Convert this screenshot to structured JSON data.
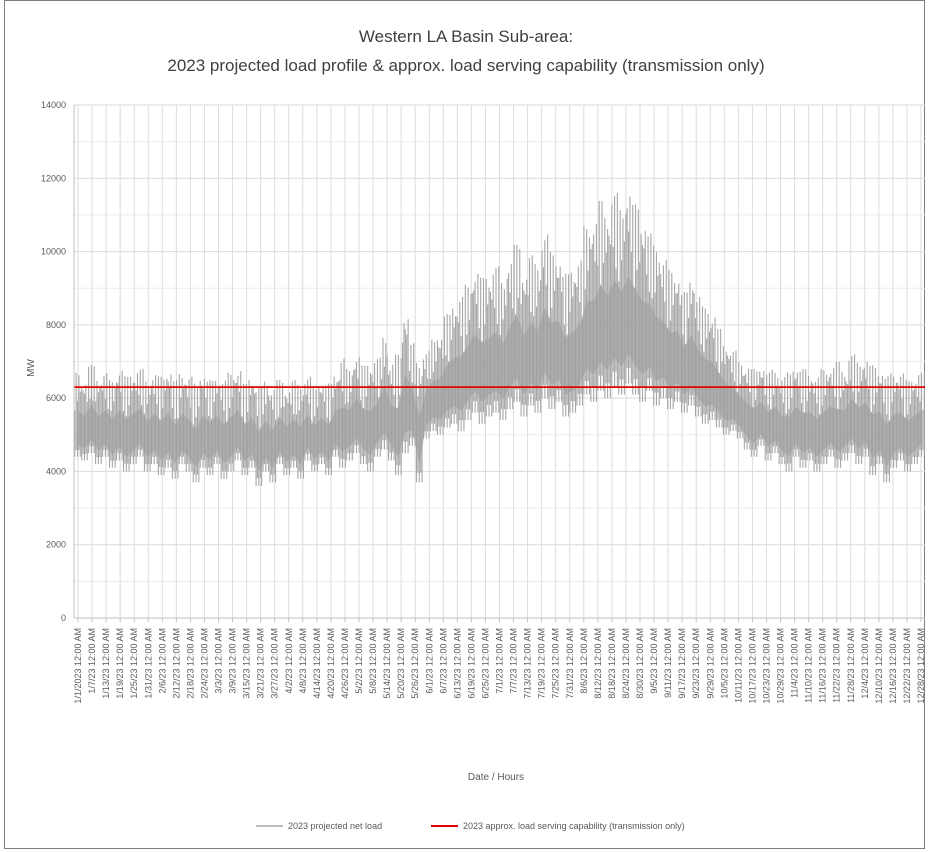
{
  "chart_data": {
    "type": "line",
    "title": "Western LA Basin Sub-area:",
    "subtitle": "2023 projected load profile & approx. load serving capability (transmission only)",
    "xlabel": "Date / Hours",
    "ylabel": "MW",
    "ylim": [
      0,
      14000
    ],
    "yticks": [
      0,
      2000,
      4000,
      6000,
      8000,
      10000,
      12000,
      14000
    ],
    "grid": true,
    "legend_position": "bottom",
    "x_tick_labels": [
      "1/1/2023 12:00 AM",
      "1/7/23 12:00 AM",
      "1/13/23 12:00 AM",
      "1/19/23 12:00 AM",
      "1/25/23 12:00 AM",
      "1/31/23 12:00 AM",
      "2/6/23 12:00 AM",
      "2/12/23 12:00 AM",
      "2/18/23 12:00 AM",
      "2/24/23 12:00 AM",
      "3/3/23 12:00 AM",
      "3/9/23 12:00 AM",
      "3/15/23 12:00 AM",
      "3/21/23 12:00 AM",
      "3/27/23 12:00 AM",
      "4/2/23 12:00 AM",
      "4/8/23 12:00 AM",
      "4/14/23 12:00 AM",
      "4/20/23 12:00 AM",
      "4/26/23 12:00 AM",
      "5/2/23 12:00 AM",
      "5/8/23 12:00 AM",
      "5/14/23 12:00 AM",
      "5/20/23 12:00 AM",
      "5/26/23 12:00 AM",
      "6/1/23 12:00 AM",
      "6/7/23 12:00 AM",
      "6/13/23 12:00 AM",
      "6/19/23 12:00 AM",
      "6/25/23 12:00 AM",
      "7/1/23 12:00 AM",
      "7/7/23 12:00 AM",
      "7/13/23 12:00 AM",
      "7/19/23 12:00 AM",
      "7/25/23 12:00 AM",
      "7/31/23 12:00 AM",
      "8/6/23 12:00 AM",
      "8/12/23 12:00 AM",
      "8/18/23 12:00 AM",
      "8/24/23 12:00 AM",
      "8/30/23 12:00 AM",
      "9/5/23 12:00 AM",
      "9/11/23 12:00 AM",
      "9/17/23 12:00 AM",
      "9/23/23 12:00 AM",
      "9/29/23 12:00 AM",
      "10/5/23 12:00 AM",
      "10/11/23 12:00 AM",
      "10/17/23 12:00 AM",
      "10/23/23 12:00 AM",
      "10/29/23 12:00 AM",
      "11/4/23 12:00 AM",
      "11/10/23 12:00 AM",
      "11/16/23 12:00 AM",
      "11/22/23 12:00 AM",
      "11/28/23 12:00 AM",
      "12/4/23 12:00 AM",
      "12/10/23 12:00 AM",
      "12/16/23 12:00 AM",
      "12/22/23 12:00 AM",
      "12/28/23 12:00 AM"
    ],
    "series": [
      {
        "name": "2023 projected net load",
        "color": "#a6a6a6",
        "x_start": "2023-01-01",
        "x_step_days": 3,
        "values": [
          [
            4400,
            6700
          ],
          [
            4300,
            6500
          ],
          [
            4500,
            6900
          ],
          [
            4200,
            6600
          ],
          [
            4400,
            6700
          ],
          [
            4100,
            6500
          ],
          [
            4300,
            6800
          ],
          [
            4000,
            6600
          ],
          [
            4200,
            6700
          ],
          [
            4400,
            6800
          ],
          [
            4000,
            6500
          ],
          [
            4200,
            6700
          ],
          [
            3900,
            6600
          ],
          [
            4100,
            6800
          ],
          [
            3800,
            6500
          ],
          [
            4200,
            6700
          ],
          [
            4000,
            6600
          ],
          [
            3700,
            6400
          ],
          [
            4100,
            6700
          ],
          [
            3900,
            6500
          ],
          [
            4200,
            6600
          ],
          [
            3800,
            6500
          ],
          [
            4000,
            6700
          ],
          [
            4300,
            6800
          ],
          [
            3900,
            6400
          ],
          [
            4100,
            6600
          ],
          [
            3600,
            6300
          ],
          [
            4000,
            6500
          ],
          [
            3700,
            6300
          ],
          [
            4200,
            6500
          ],
          [
            3900,
            6300
          ],
          [
            4100,
            6500
          ],
          [
            3800,
            6400
          ],
          [
            4300,
            6600
          ],
          [
            4000,
            6300
          ],
          [
            4200,
            6500
          ],
          [
            3900,
            6400
          ],
          [
            4400,
            6700
          ],
          [
            4100,
            7100
          ],
          [
            4300,
            6800
          ],
          [
            4500,
            7200
          ],
          [
            4200,
            6900
          ],
          [
            4000,
            7000
          ],
          [
            4400,
            7100
          ],
          [
            4600,
            7700
          ],
          [
            4300,
            7000
          ],
          [
            3900,
            7200
          ],
          [
            4500,
            8400
          ],
          [
            4700,
            7500
          ],
          [
            3700,
            7000
          ],
          [
            4900,
            7300
          ],
          [
            5100,
            7600
          ],
          [
            5000,
            7800
          ],
          [
            5200,
            8300
          ],
          [
            5300,
            8600
          ],
          [
            5100,
            8800
          ],
          [
            5400,
            9100
          ],
          [
            5600,
            9500
          ],
          [
            5300,
            9300
          ],
          [
            5500,
            9400
          ],
          [
            5600,
            9600
          ],
          [
            5400,
            9200
          ],
          [
            5700,
            9800
          ],
          [
            5900,
            10200
          ],
          [
            5500,
            9500
          ],
          [
            5800,
            9900
          ],
          [
            5600,
            9700
          ],
          [
            6000,
            10500
          ],
          [
            5700,
            10000
          ],
          [
            5900,
            9900
          ],
          [
            5500,
            9400
          ],
          [
            5600,
            9600
          ],
          [
            5800,
            9800
          ],
          [
            6100,
            10700
          ],
          [
            5900,
            10900
          ],
          [
            6200,
            11400
          ],
          [
            6000,
            11100
          ],
          [
            6300,
            11600
          ],
          [
            6100,
            11200
          ],
          [
            6400,
            11700
          ],
          [
            6100,
            11300
          ],
          [
            5900,
            10900
          ],
          [
            6200,
            10500
          ],
          [
            5800,
            10200
          ],
          [
            6000,
            9800
          ],
          [
            5700,
            9500
          ],
          [
            5900,
            9400
          ],
          [
            5600,
            8900
          ],
          [
            5800,
            9300
          ],
          [
            5500,
            8800
          ],
          [
            5300,
            8500
          ],
          [
            5400,
            8300
          ],
          [
            5200,
            7900
          ],
          [
            5000,
            7500
          ],
          [
            5100,
            7300
          ],
          [
            4900,
            7000
          ],
          [
            4600,
            6900
          ],
          [
            4400,
            6800
          ],
          [
            4700,
            6900
          ],
          [
            4300,
            6700
          ],
          [
            4500,
            6800
          ],
          [
            4200,
            6600
          ],
          [
            4000,
            6700
          ],
          [
            4400,
            6900
          ],
          [
            4100,
            6800
          ],
          [
            4300,
            6700
          ],
          [
            4000,
            6600
          ],
          [
            4200,
            6800
          ],
          [
            4400,
            6900
          ],
          [
            4100,
            7000
          ],
          [
            4300,
            6800
          ],
          [
            4500,
            7200
          ],
          [
            4200,
            7000
          ],
          [
            4400,
            7100
          ],
          [
            3900,
            6900
          ],
          [
            4200,
            6800
          ],
          [
            3700,
            6600
          ],
          [
            4100,
            6700
          ],
          [
            4300,
            6700
          ],
          [
            4000,
            6500
          ],
          [
            4200,
            6600
          ],
          [
            4400,
            6700
          ]
        ]
      },
      {
        "name": "2023 approx. load serving capability (transmission only)",
        "color": "#e00000",
        "values": [
          6300,
          6300
        ]
      }
    ]
  }
}
